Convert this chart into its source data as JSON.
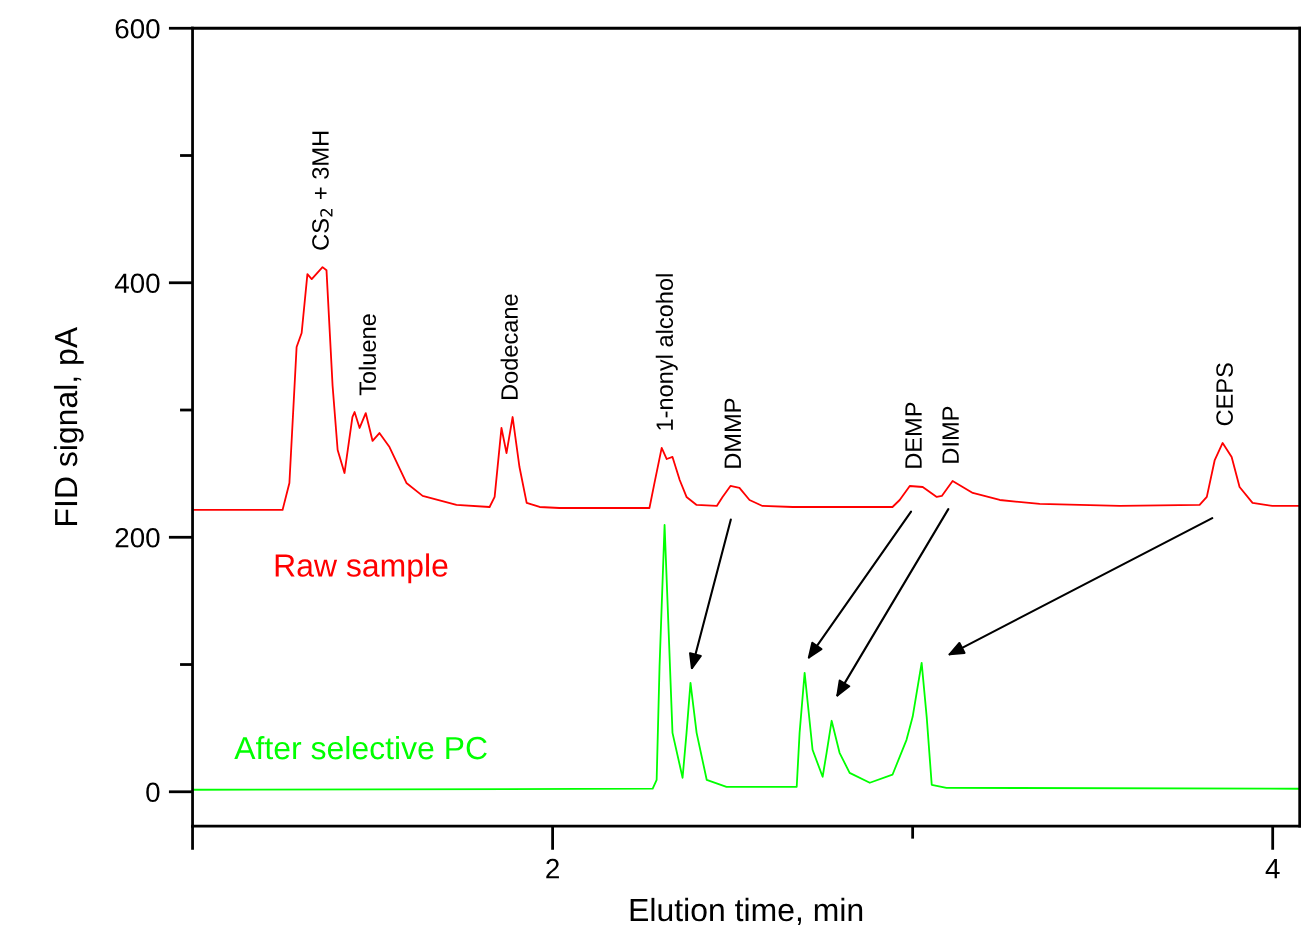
{
  "chart_data": {
    "type": "line",
    "xlabel": "Elution time, min",
    "ylabel": "FID signal, pA",
    "xlim": [
      1.0,
      4.075
    ],
    "ylim": [
      -27,
      600
    ],
    "xticks": [
      {
        "value": 1,
        "label": null
      },
      2,
      {
        "value": 3,
        "label": null
      },
      4
    ],
    "yticks": [
      0,
      {
        "value": 100,
        "label": null
      },
      200,
      {
        "value": 300,
        "label": null
      },
      400,
      {
        "value": 500,
        "label": null
      },
      600
    ],
    "grid": false,
    "legend": false,
    "marker": "none",
    "line_style": "solid",
    "series": [
      {
        "name": "Raw sample",
        "color": "#ff0000",
        "x": [
          1.0,
          1.25,
          1.269,
          1.289,
          1.303,
          1.319,
          1.331,
          1.361,
          1.372,
          1.389,
          1.403,
          1.422,
          1.444,
          1.45,
          1.464,
          1.481,
          1.5,
          1.519,
          1.547,
          1.594,
          1.639,
          1.733,
          1.825,
          1.839,
          1.858,
          1.872,
          1.889,
          1.908,
          1.928,
          1.964,
          2.019,
          2.269,
          2.283,
          2.303,
          2.317,
          2.333,
          2.353,
          2.372,
          2.4,
          2.456,
          2.472,
          2.494,
          2.519,
          2.547,
          2.583,
          2.667,
          2.944,
          2.964,
          2.992,
          3.028,
          3.067,
          3.081,
          3.111,
          3.139,
          3.167,
          3.242,
          3.353,
          3.575,
          3.797,
          3.817,
          3.839,
          3.861,
          3.886,
          3.908,
          3.944,
          4.0,
          4.075
        ],
        "values": [
          221.5,
          221.5,
          242.7,
          349.5,
          360.5,
          406.8,
          402.9,
          412.3,
          409.9,
          318.9,
          268.6,
          250.5,
          294.5,
          298.4,
          285.9,
          297.6,
          275.7,
          281.9,
          270.9,
          242.7,
          232.5,
          225.4,
          223.8,
          231.7,
          285.9,
          266.2,
          294.5,
          255.2,
          227.0,
          223.8,
          223.0,
          223.0,
          242.7,
          270.2,
          261.5,
          263.1,
          245.0,
          231.7,
          225.4,
          224.6,
          231.7,
          240.3,
          238.8,
          229.3,
          224.6,
          223.8,
          223.8,
          229.3,
          240.3,
          239.5,
          231.7,
          232.5,
          244.2,
          239.5,
          234.8,
          229.3,
          226.2,
          224.6,
          225.4,
          231.7,
          260.7,
          274.1,
          263.1,
          239.5,
          227.0,
          224.6,
          224.6
        ]
      },
      {
        "name": "After selective PC",
        "color": "#00ff00",
        "x": [
          1.0,
          2.278,
          2.289,
          2.297,
          2.311,
          2.319,
          2.333,
          2.361,
          2.372,
          2.383,
          2.4,
          2.428,
          2.483,
          2.678,
          2.686,
          2.7,
          2.722,
          2.75,
          2.761,
          2.775,
          2.797,
          2.825,
          2.881,
          2.944,
          2.983,
          3.0,
          3.025,
          3.039,
          3.053,
          3.094,
          4.075
        ],
        "values": [
          1.6,
          2.4,
          9.4,
          98.2,
          209.7,
          150.8,
          46.3,
          11.0,
          46.3,
          85.6,
          46.3,
          9.4,
          3.9,
          3.9,
          46.3,
          93.5,
          33.0,
          11.8,
          30.6,
          55.8,
          30.6,
          14.9,
          7.1,
          13.4,
          40.8,
          58.9,
          101.3,
          58.9,
          5.5,
          3.1,
          2.4
        ]
      }
    ],
    "annotations": [
      {
        "text": "CS$_{2}$ + 3MH",
        "x": 1.361,
        "y": 412
      },
      {
        "text": "Toluene",
        "x": 1.492,
        "y": 298
      },
      {
        "text": "Dodecane",
        "x": 1.886,
        "y": 294
      },
      {
        "text": "1-nonyl alcohol",
        "x": 2.317,
        "y": 270
      },
      {
        "text": "DMMP",
        "x": 2.506,
        "y": 240
      },
      {
        "text": "DEMP",
        "x": 3.008,
        "y": 240
      },
      {
        "text": "DIMP",
        "x": 3.111,
        "y": 244
      },
      {
        "text": "CEPS",
        "x": 3.872,
        "y": 274
      }
    ]
  }
}
